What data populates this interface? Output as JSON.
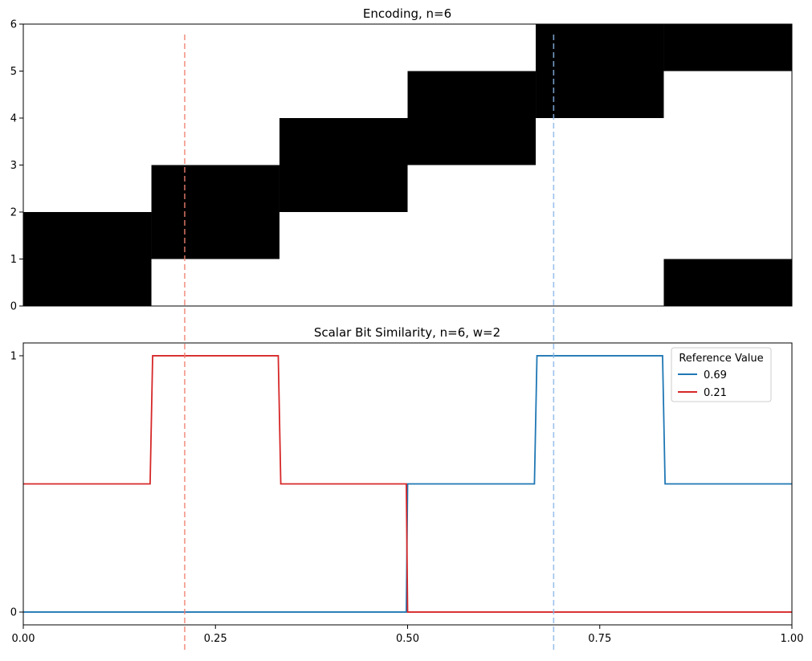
{
  "chart_data": [
    {
      "type": "heatmap",
      "title": "Encoding, n=6",
      "xlim": [
        0,
        1
      ],
      "ylim": [
        0,
        6
      ],
      "y_ticks": [
        "0",
        "1",
        "2",
        "3",
        "4",
        "5",
        "6"
      ],
      "cells": [
        {
          "x0": 0.0,
          "x1": 0.1667,
          "y0": 0,
          "y1": 2
        },
        {
          "x0": 0.1667,
          "x1": 0.3333,
          "y0": 1,
          "y1": 3
        },
        {
          "x0": 0.3333,
          "x1": 0.5,
          "y0": 2,
          "y1": 4
        },
        {
          "x0": 0.5,
          "x1": 0.6667,
          "y0": 3,
          "y1": 5
        },
        {
          "x0": 0.6667,
          "x1": 0.8333,
          "y0": 4,
          "y1": 6
        },
        {
          "x0": 0.8333,
          "x1": 1.0,
          "y0": 5,
          "y1": 6
        },
        {
          "x0": 0.8333,
          "x1": 1.0,
          "y0": 0,
          "y1": 1
        }
      ],
      "cell_color": "#000000"
    },
    {
      "type": "line",
      "title": "Scalar Bit Similarity, n=6, w=2",
      "xlim": [
        0,
        1
      ],
      "ylim": [
        -0.05,
        1.05
      ],
      "x_ticks": [
        "0.00",
        "0.25",
        "0.50",
        "0.75",
        "1.00"
      ],
      "x_tick_values": [
        0,
        0.25,
        0.5,
        0.75,
        1.0
      ],
      "y_ticks": [
        "0",
        "1"
      ],
      "y_tick_values": [
        0,
        1
      ],
      "legend": {
        "title": "Reference Value",
        "position": "top-right"
      },
      "series": [
        {
          "name": "0.69",
          "color": "#1f77b4",
          "points": [
            [
              0,
              0
            ],
            [
              0.4983,
              0
            ],
            [
              0.5,
              0.5
            ],
            [
              0.665,
              0.5
            ],
            [
              0.6683,
              1
            ],
            [
              0.8317,
              1
            ],
            [
              0.835,
              0.5
            ],
            [
              1.0,
              0.5
            ]
          ]
        },
        {
          "name": "0.21",
          "color": "#d62728",
          "points": [
            [
              0,
              0.5
            ],
            [
              0.165,
              0.5
            ],
            [
              0.1683,
              1
            ],
            [
              0.3317,
              1
            ],
            [
              0.335,
              0.5
            ],
            [
              0.4983,
              0.5
            ],
            [
              0.5,
              0
            ],
            [
              1.0,
              0
            ]
          ]
        }
      ]
    }
  ],
  "reference_lines": [
    {
      "x": 0.21,
      "color": "#f08070"
    },
    {
      "x": 0.69,
      "color": "#8ab6e8"
    }
  ]
}
